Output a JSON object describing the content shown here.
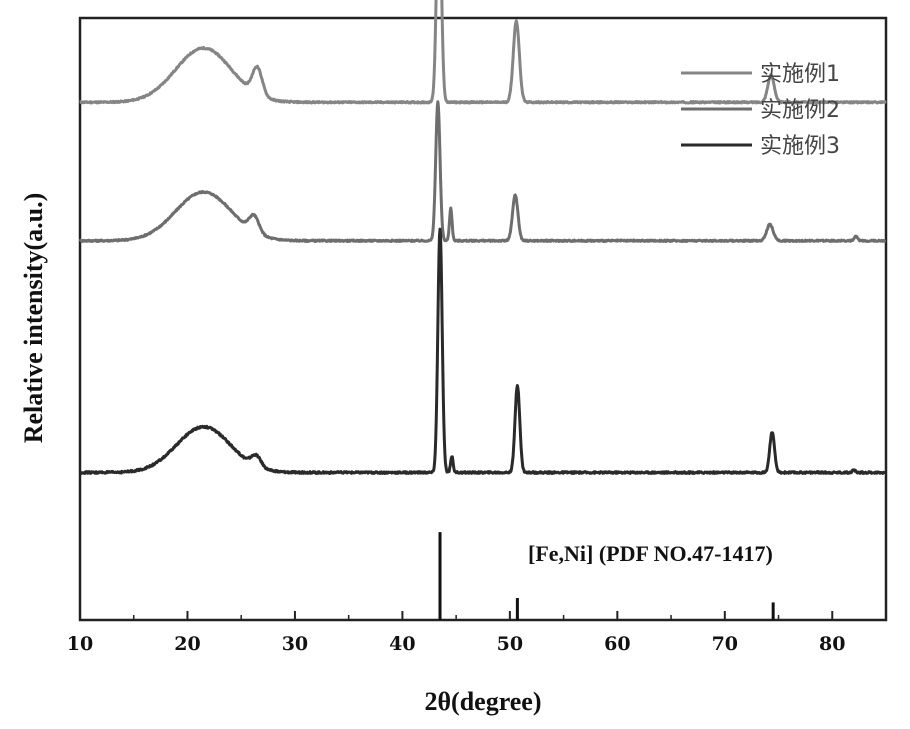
{
  "chart_data": {
    "type": "line",
    "xlabel": "2θ(degree)",
    "ylabel": "Relative intensity(a.u.)",
    "xlim": [
      10,
      85
    ],
    "x_ticks": [
      10,
      20,
      30,
      40,
      50,
      60,
      70,
      80
    ],
    "legend_position": "top-right",
    "series": [
      {
        "name": "实施例1",
        "color": "#858585",
        "baseline": 0.86,
        "noise": 0.0012,
        "components": [
          {
            "center": 21.5,
            "height": 0.09,
            "width": 2.6
          },
          {
            "center": 26.5,
            "height": 0.045,
            "width": 0.45
          },
          {
            "center": 43.4,
            "height": 0.36,
            "width": 0.22
          },
          {
            "center": 50.6,
            "height": 0.135,
            "width": 0.28
          },
          {
            "center": 74.3,
            "height": 0.045,
            "width": 0.3
          }
        ]
      },
      {
        "name": "实施例2",
        "color": "#6e6e6e",
        "baseline": 0.63,
        "noise": 0.0012,
        "components": [
          {
            "center": 21.5,
            "height": 0.081,
            "width": 2.6
          },
          {
            "center": 26.2,
            "height": 0.027,
            "width": 0.45
          },
          {
            "center": 43.3,
            "height": 0.23,
            "width": 0.2
          },
          {
            "center": 44.5,
            "height": 0.054,
            "width": 0.12
          },
          {
            "center": 50.5,
            "height": 0.076,
            "width": 0.25
          },
          {
            "center": 74.2,
            "height": 0.027,
            "width": 0.3
          },
          {
            "center": 82.2,
            "height": 0.007,
            "width": 0.15
          }
        ]
      },
      {
        "name": "实施例3",
        "color": "#2a2a2a",
        "baseline": 0.245,
        "noise": 0.0015,
        "components": [
          {
            "center": 21.5,
            "height": 0.076,
            "width": 2.5
          },
          {
            "center": 26.4,
            "height": 0.018,
            "width": 0.45
          },
          {
            "center": 43.5,
            "height": 0.405,
            "width": 0.2
          },
          {
            "center": 44.6,
            "height": 0.027,
            "width": 0.12
          },
          {
            "center": 50.7,
            "height": 0.145,
            "width": 0.22
          },
          {
            "center": 74.4,
            "height": 0.067,
            "width": 0.22
          },
          {
            "center": 82.0,
            "height": 0.004,
            "width": 0.15
          }
        ]
      }
    ],
    "reference": {
      "label": "[Fe,Ni] (PDF NO.47-1417)",
      "color": "#111111",
      "lines": [
        {
          "x": 43.5,
          "intensity": 100
        },
        {
          "x": 50.7,
          "intensity": 25
        },
        {
          "x": 74.5,
          "intensity": 20
        }
      ]
    }
  }
}
